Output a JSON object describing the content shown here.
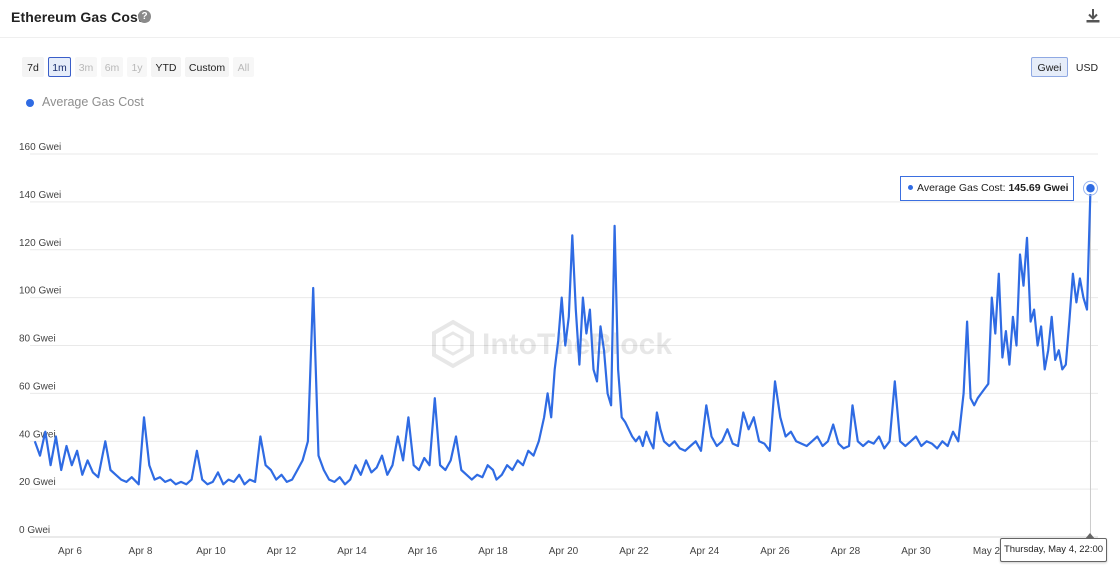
{
  "header": {
    "title": "Ethereum Gas Costs",
    "help_icon": "question-circle-icon",
    "download_icon": "download-icon"
  },
  "range_buttons": [
    {
      "label": "7d",
      "state": "normal"
    },
    {
      "label": "1m",
      "state": "active"
    },
    {
      "label": "3m",
      "state": "disabled"
    },
    {
      "label": "6m",
      "state": "disabled"
    },
    {
      "label": "1y",
      "state": "disabled"
    },
    {
      "label": "YTD",
      "state": "normal"
    },
    {
      "label": "Custom",
      "state": "normal"
    },
    {
      "label": "All",
      "state": "disabled"
    }
  ],
  "unit_buttons": [
    {
      "label": "Gwei",
      "state": "active"
    },
    {
      "label": "USD",
      "state": "normal"
    }
  ],
  "tooltip": {
    "label": "Average Gas Cost:",
    "value": "145.69 Gwei"
  },
  "crosshair_date": "Thursday, May 4, 22:00",
  "watermark": "IntoTheBlock",
  "colors": {
    "series": "#2f6be3",
    "grid": "#e9e9e9",
    "active_button": "#e6edf9"
  },
  "chart_data": {
    "type": "line",
    "title": "Ethereum Gas Costs",
    "unit": "Gwei",
    "ylim": [
      0,
      160
    ],
    "yticks": [
      "0 Gwei",
      "20 Gwei",
      "40 Gwei",
      "60 Gwei",
      "80 Gwei",
      "100 Gwei",
      "120 Gwei",
      "140 Gwei",
      "160 Gwei"
    ],
    "xlim_days": [
      5,
      34
    ],
    "xticks": [
      {
        "day": 6,
        "label": "Apr 6"
      },
      {
        "day": 8,
        "label": "Apr 8"
      },
      {
        "day": 10,
        "label": "Apr 10"
      },
      {
        "day": 12,
        "label": "Apr 12"
      },
      {
        "day": 14,
        "label": "Apr 14"
      },
      {
        "day": 16,
        "label": "Apr 16"
      },
      {
        "day": 18,
        "label": "Apr 18"
      },
      {
        "day": 20,
        "label": "Apr 20"
      },
      {
        "day": 22,
        "label": "Apr 22"
      },
      {
        "day": 24,
        "label": "Apr 24"
      },
      {
        "day": 26,
        "label": "Apr 26"
      },
      {
        "day": 28,
        "label": "Apr 28"
      },
      {
        "day": 30,
        "label": "Apr 30"
      },
      {
        "day": 32,
        "label": "May 2"
      }
    ],
    "grid": true,
    "legend_position": "top-left",
    "series": [
      {
        "name": "Average Gas Cost",
        "points": [
          [
            5.0,
            40
          ],
          [
            5.15,
            34
          ],
          [
            5.3,
            44
          ],
          [
            5.45,
            30
          ],
          [
            5.6,
            42
          ],
          [
            5.75,
            28
          ],
          [
            5.9,
            38
          ],
          [
            6.05,
            30
          ],
          [
            6.2,
            36
          ],
          [
            6.35,
            26
          ],
          [
            6.5,
            32
          ],
          [
            6.65,
            27
          ],
          [
            6.8,
            25
          ],
          [
            7.0,
            40
          ],
          [
            7.15,
            28
          ],
          [
            7.3,
            26
          ],
          [
            7.45,
            24
          ],
          [
            7.6,
            23
          ],
          [
            7.75,
            25
          ],
          [
            7.95,
            22
          ],
          [
            8.1,
            50
          ],
          [
            8.25,
            30
          ],
          [
            8.4,
            24
          ],
          [
            8.55,
            25
          ],
          [
            8.7,
            23
          ],
          [
            8.85,
            24
          ],
          [
            9.0,
            22
          ],
          [
            9.15,
            23
          ],
          [
            9.3,
            22
          ],
          [
            9.45,
            24
          ],
          [
            9.6,
            36
          ],
          [
            9.75,
            24
          ],
          [
            9.9,
            22
          ],
          [
            10.05,
            23
          ],
          [
            10.2,
            27
          ],
          [
            10.35,
            22
          ],
          [
            10.5,
            24
          ],
          [
            10.65,
            23
          ],
          [
            10.8,
            26
          ],
          [
            10.95,
            22
          ],
          [
            11.1,
            24
          ],
          [
            11.25,
            23
          ],
          [
            11.4,
            42
          ],
          [
            11.55,
            30
          ],
          [
            11.7,
            28
          ],
          [
            11.85,
            24
          ],
          [
            12.0,
            26
          ],
          [
            12.15,
            23
          ],
          [
            12.3,
            24
          ],
          [
            12.45,
            28
          ],
          [
            12.6,
            32
          ],
          [
            12.75,
            40
          ],
          [
            12.9,
            104
          ],
          [
            13.05,
            34
          ],
          [
            13.2,
            28
          ],
          [
            13.35,
            24
          ],
          [
            13.5,
            23
          ],
          [
            13.65,
            25
          ],
          [
            13.8,
            22
          ],
          [
            13.95,
            24
          ],
          [
            14.1,
            30
          ],
          [
            14.25,
            26
          ],
          [
            14.4,
            32
          ],
          [
            14.55,
            27
          ],
          [
            14.7,
            29
          ],
          [
            14.85,
            34
          ],
          [
            15.0,
            26
          ],
          [
            15.15,
            30
          ],
          [
            15.3,
            42
          ],
          [
            15.45,
            32
          ],
          [
            15.6,
            50
          ],
          [
            15.75,
            30
          ],
          [
            15.9,
            28
          ],
          [
            16.05,
            33
          ],
          [
            16.2,
            30
          ],
          [
            16.35,
            58
          ],
          [
            16.5,
            30
          ],
          [
            16.65,
            28
          ],
          [
            16.8,
            32
          ],
          [
            16.95,
            42
          ],
          [
            17.1,
            28
          ],
          [
            17.25,
            26
          ],
          [
            17.4,
            24
          ],
          [
            17.55,
            26
          ],
          [
            17.7,
            25
          ],
          [
            17.85,
            30
          ],
          [
            18.0,
            28
          ],
          [
            18.1,
            24
          ],
          [
            18.25,
            26
          ],
          [
            18.4,
            30
          ],
          [
            18.55,
            28
          ],
          [
            18.7,
            32
          ],
          [
            18.85,
            30
          ],
          [
            19.0,
            36
          ],
          [
            19.15,
            34
          ],
          [
            19.3,
            40
          ],
          [
            19.45,
            50
          ],
          [
            19.55,
            60
          ],
          [
            19.65,
            50
          ],
          [
            19.75,
            70
          ],
          [
            19.85,
            82
          ],
          [
            19.95,
            100
          ],
          [
            20.05,
            80
          ],
          [
            20.15,
            92
          ],
          [
            20.25,
            126
          ],
          [
            20.35,
            95
          ],
          [
            20.45,
            72
          ],
          [
            20.55,
            100
          ],
          [
            20.65,
            85
          ],
          [
            20.75,
            95
          ],
          [
            20.85,
            70
          ],
          [
            20.95,
            65
          ],
          [
            21.05,
            88
          ],
          [
            21.15,
            78
          ],
          [
            21.25,
            60
          ],
          [
            21.35,
            55
          ],
          [
            21.45,
            130
          ],
          [
            21.55,
            70
          ],
          [
            21.65,
            50
          ],
          [
            21.75,
            48
          ],
          [
            21.85,
            45
          ],
          [
            21.95,
            42
          ],
          [
            22.05,
            40
          ],
          [
            22.15,
            42
          ],
          [
            22.25,
            38
          ],
          [
            22.35,
            44
          ],
          [
            22.45,
            40
          ],
          [
            22.55,
            37
          ],
          [
            22.65,
            52
          ],
          [
            22.75,
            45
          ],
          [
            22.85,
            40
          ],
          [
            23.0,
            38
          ],
          [
            23.15,
            40
          ],
          [
            23.3,
            37
          ],
          [
            23.45,
            36
          ],
          [
            23.6,
            38
          ],
          [
            23.75,
            40
          ],
          [
            23.9,
            36
          ],
          [
            24.05,
            55
          ],
          [
            24.2,
            42
          ],
          [
            24.35,
            38
          ],
          [
            24.5,
            40
          ],
          [
            24.65,
            45
          ],
          [
            24.8,
            39
          ],
          [
            24.95,
            38
          ],
          [
            25.1,
            52
          ],
          [
            25.25,
            45
          ],
          [
            25.4,
            50
          ],
          [
            25.55,
            40
          ],
          [
            25.7,
            39
          ],
          [
            25.85,
            36
          ],
          [
            26.0,
            65
          ],
          [
            26.15,
            50
          ],
          [
            26.3,
            42
          ],
          [
            26.45,
            44
          ],
          [
            26.6,
            40
          ],
          [
            26.75,
            39
          ],
          [
            26.9,
            38
          ],
          [
            27.05,
            40
          ],
          [
            27.2,
            42
          ],
          [
            27.35,
            38
          ],
          [
            27.5,
            40
          ],
          [
            27.65,
            47
          ],
          [
            27.8,
            39
          ],
          [
            27.95,
            37
          ],
          [
            28.1,
            38
          ],
          [
            28.2,
            55
          ],
          [
            28.35,
            40
          ],
          [
            28.5,
            38
          ],
          [
            28.65,
            40
          ],
          [
            28.8,
            39
          ],
          [
            28.95,
            42
          ],
          [
            29.1,
            37
          ],
          [
            29.25,
            40
          ],
          [
            29.4,
            65
          ],
          [
            29.55,
            40
          ],
          [
            29.7,
            38
          ],
          [
            29.85,
            40
          ],
          [
            30.0,
            42
          ],
          [
            30.15,
            38
          ],
          [
            30.3,
            40
          ],
          [
            30.45,
            39
          ],
          [
            30.6,
            37
          ],
          [
            30.75,
            40
          ],
          [
            30.9,
            38
          ],
          [
            31.05,
            44
          ],
          [
            31.2,
            40
          ],
          [
            31.35,
            60
          ],
          [
            31.45,
            90
          ],
          [
            31.55,
            58
          ],
          [
            31.65,
            55
          ],
          [
            31.75,
            58
          ],
          [
            31.85,
            60
          ],
          [
            31.95,
            62
          ],
          [
            32.05,
            64
          ],
          [
            32.15,
            100
          ],
          [
            32.25,
            85
          ],
          [
            32.35,
            110
          ],
          [
            32.45,
            75
          ],
          [
            32.55,
            86
          ],
          [
            32.65,
            72
          ],
          [
            32.75,
            92
          ],
          [
            32.85,
            80
          ],
          [
            32.95,
            118
          ],
          [
            33.05,
            105
          ],
          [
            33.15,
            125
          ],
          [
            33.25,
            90
          ],
          [
            33.35,
            95
          ],
          [
            33.45,
            80
          ],
          [
            33.55,
            88
          ],
          [
            33.65,
            70
          ],
          [
            33.75,
            78
          ],
          [
            33.85,
            92
          ],
          [
            33.95,
            74
          ],
          [
            34.05,
            78
          ],
          [
            34.15,
            70
          ],
          [
            34.25,
            72
          ],
          [
            34.35,
            90
          ],
          [
            34.45,
            110
          ],
          [
            34.55,
            98
          ],
          [
            34.65,
            108
          ],
          [
            34.75,
            100
          ],
          [
            34.85,
            95
          ],
          [
            34.95,
            145.69
          ]
        ]
      }
    ]
  }
}
